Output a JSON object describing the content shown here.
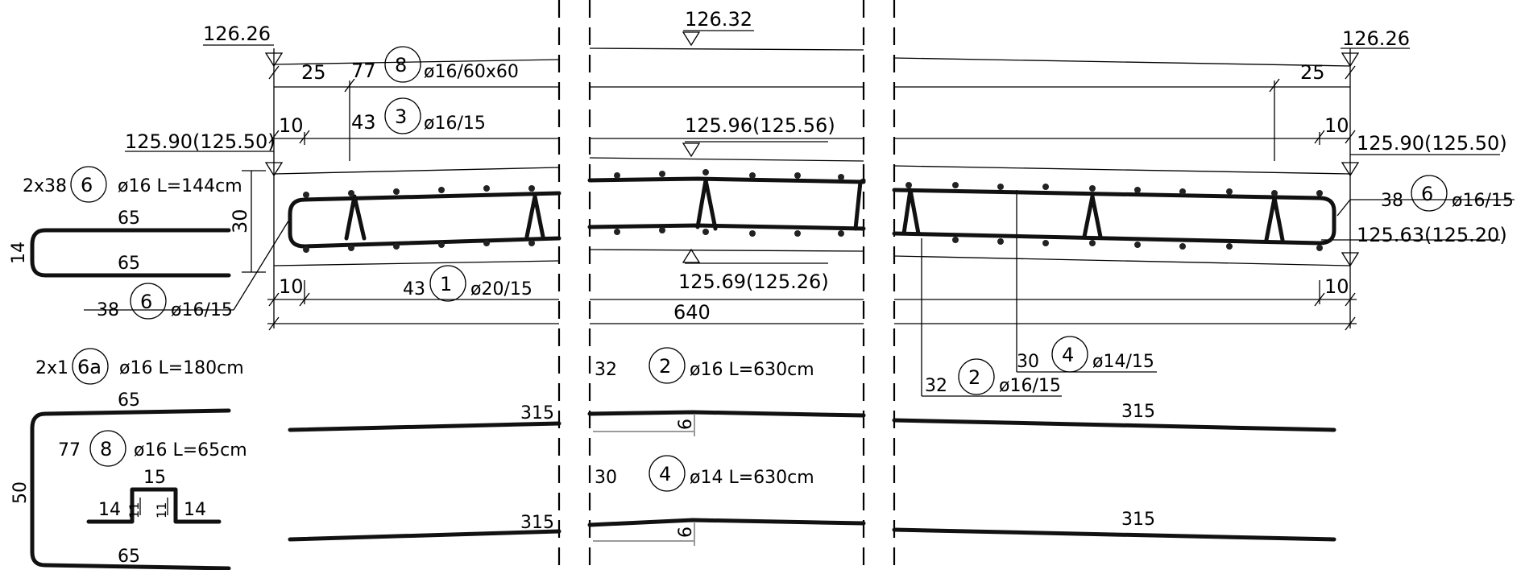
{
  "levels": {
    "top_left": "126.26",
    "top_mid": "126.32",
    "top_right": "126.26",
    "mid_left": "125.90(125.50)",
    "mid_mid": "125.96(125.56)",
    "mid_right": "125.90(125.50)",
    "bot_mid": "125.69(125.26)",
    "bot_right": "125.63(125.20)"
  },
  "dimensions": {
    "d25": "25",
    "d77": "77",
    "d43": "43",
    "d10": "10",
    "d30": "30",
    "d640": "640",
    "d315": "315",
    "d6": "6",
    "d32": "32",
    "d38": "38"
  },
  "bars": [
    {
      "mark": "1",
      "prefix": "43",
      "spec": "ø20/15"
    },
    {
      "mark": "2",
      "prefix": "32",
      "spec": "ø16 L=630cm"
    },
    {
      "mark": "2",
      "prefix": "32",
      "spec": "ø16/15"
    },
    {
      "mark": "3",
      "prefix": "43",
      "spec": "ø16/15"
    },
    {
      "mark": "4",
      "prefix": "30",
      "spec": "ø14 L=630cm"
    },
    {
      "mark": "4",
      "prefix": "30",
      "spec": "ø14/15"
    },
    {
      "mark": "6",
      "prefix": "2x38",
      "spec": "ø16 L=144cm"
    },
    {
      "mark": "6",
      "prefix": "38",
      "spec": "ø16/15"
    },
    {
      "mark": "6",
      "prefix": "38",
      "spec": "ø16/15"
    },
    {
      "mark": "6a",
      "prefix": "2x1",
      "spec": "ø16 L=180cm"
    },
    {
      "mark": "8",
      "prefix": "77",
      "spec": "ø16 L=65cm"
    },
    {
      "mark": "8",
      "prefix": "",
      "spec": "ø16/60x60"
    }
  ],
  "bending": {
    "b6_len": "65",
    "b6_height": "14",
    "b6a_len": "65",
    "b6a_height": "50",
    "b8_top": "15",
    "b8_leg": "14",
    "b8_rise": "11"
  }
}
